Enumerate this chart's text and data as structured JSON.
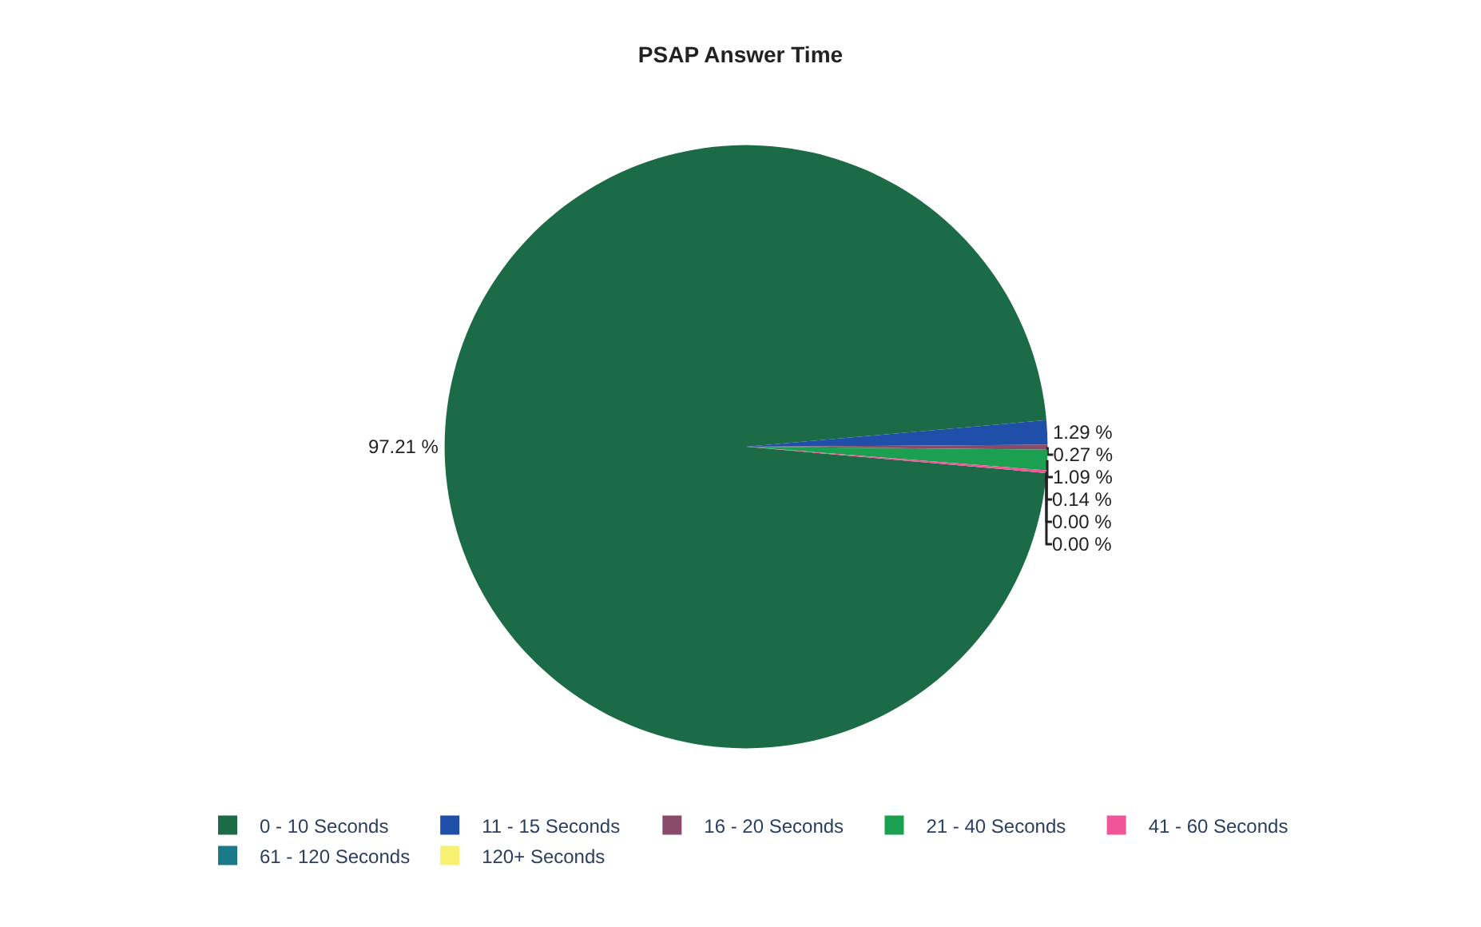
{
  "chart_data": {
    "type": "pie",
    "title": "PSAP Answer Time",
    "categories": [
      "0 - 10 Seconds",
      "11 - 15 Seconds",
      "16 - 20 Seconds",
      "21 - 40 Seconds",
      "41 - 60 Seconds",
      "61 - 120 Seconds",
      "120+ Seconds"
    ],
    "values": [
      97.21,
      1.29,
      0.27,
      1.09,
      0.14,
      0.0,
      0.0
    ],
    "value_labels": [
      "97.21 %",
      "1.29 %",
      "0.27 %",
      "1.09 %",
      "0.14 %",
      "0.00 %",
      "0.00 %"
    ],
    "colors": [
      "#1b6b46",
      "#1f4fa8",
      "#8a4a6a",
      "#1aa050",
      "#f0559a",
      "#1a7a8a",
      "#f8f070"
    ],
    "legend": "bottom"
  }
}
